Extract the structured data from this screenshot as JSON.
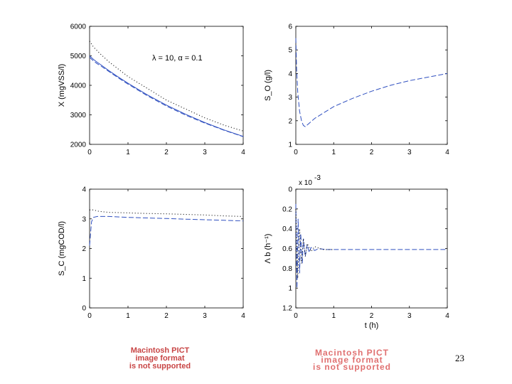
{
  "chart_data": [
    {
      "type": "line",
      "panel": "top-left",
      "ylabel": "X (mgVSS/l)",
      "xlabel": "",
      "annotation": "λ = 10, α = 0.1",
      "xlim": [
        0,
        4
      ],
      "ylim": [
        2000,
        6000
      ],
      "xticks": [
        0,
        1,
        2,
        3,
        4
      ],
      "yticks": [
        2000,
        3000,
        4000,
        5000,
        6000
      ],
      "series": [
        {
          "style": "solid",
          "color": "#3050c0",
          "x": [
            0,
            0.1,
            0.2,
            0.3,
            0.5,
            0.75,
            1,
            1.5,
            2,
            2.5,
            3,
            3.5,
            4
          ],
          "y": [
            5000,
            4880,
            4780,
            4690,
            4500,
            4280,
            4070,
            3680,
            3330,
            3020,
            2740,
            2490,
            2270
          ]
        },
        {
          "style": "dashed",
          "color": "#3050c0",
          "x": [
            0,
            0.1,
            0.2,
            0.3,
            0.5,
            0.75,
            1,
            1.5,
            2,
            2.5,
            3,
            3.5,
            4
          ],
          "y": [
            4950,
            4830,
            4730,
            4650,
            4470,
            4250,
            4040,
            3650,
            3300,
            2990,
            2720,
            2480,
            2260
          ]
        },
        {
          "style": "dotted",
          "color": "#000000",
          "x": [
            0,
            0.1,
            0.25,
            0.5,
            1,
            1.5,
            2,
            2.5,
            3,
            3.5,
            4
          ],
          "y": [
            5500,
            5300,
            5100,
            4800,
            4300,
            3900,
            3500,
            3200,
            2900,
            2650,
            2450
          ]
        }
      ]
    },
    {
      "type": "line",
      "panel": "top-right",
      "ylabel": "S_O (g/l)",
      "xlabel": "",
      "xlim": [
        0,
        4
      ],
      "ylim": [
        1,
        6
      ],
      "xticks": [
        0,
        1,
        2,
        3,
        4
      ],
      "yticks": [
        1,
        2,
        3,
        4,
        5,
        6
      ],
      "series": [
        {
          "style": "dashed",
          "color": "#3050c0",
          "x": [
            0,
            0.02,
            0.05,
            0.1,
            0.15,
            0.2,
            0.25,
            0.5,
            1,
            1.5,
            2,
            2.5,
            3,
            3.5,
            4
          ],
          "y": [
            5.5,
            4.2,
            3.2,
            2.4,
            2.0,
            1.8,
            1.75,
            2.1,
            2.6,
            2.95,
            3.25,
            3.5,
            3.7,
            3.85,
            4.0
          ]
        }
      ]
    },
    {
      "type": "line",
      "panel": "bottom-left",
      "ylabel": "S_C (mgCOD/l)",
      "xlabel": "",
      "xlim": [
        0,
        4
      ],
      "ylim": [
        0,
        4
      ],
      "xticks": [
        0,
        1,
        2,
        3,
        4
      ],
      "yticks": [
        0,
        1,
        2,
        3,
        4
      ],
      "series": [
        {
          "style": "dashed",
          "color": "#3050c0",
          "x": [
            0,
            0.05,
            0.1,
            0.2,
            0.5,
            1,
            1.5,
            2,
            2.5,
            3,
            3.5,
            4
          ],
          "y": [
            2.1,
            2.9,
            3.05,
            3.08,
            3.08,
            3.05,
            3.03,
            3.01,
            2.99,
            2.97,
            2.95,
            2.93
          ]
        },
        {
          "style": "dotted",
          "color": "#000000",
          "x": [
            0,
            0.1,
            0.25,
            0.5,
            1,
            1.5,
            2,
            2.5,
            3,
            3.5,
            4
          ],
          "y": [
            3.3,
            3.3,
            3.25,
            3.22,
            3.2,
            3.18,
            3.17,
            3.15,
            3.13,
            3.1,
            3.08
          ]
        }
      ]
    },
    {
      "type": "line",
      "panel": "bottom-right",
      "ylabel": "Λ b (h⁻¹)",
      "xlabel": "t (h)",
      "yscale_label": "x 10",
      "yscale_exp": "-3",
      "xlim": [
        0,
        4
      ],
      "ylim": [
        -1.2,
        0
      ],
      "xticks": [
        0,
        1,
        2,
        3,
        4
      ],
      "yticks": [
        0,
        -0.2,
        -0.4,
        -0.6,
        -0.8,
        -1,
        -1.2
      ],
      "ytick_labels": [
        "0",
        "0.2",
        "0.4",
        "0.6",
        "0.8",
        "1",
        "1.2"
      ],
      "series": [
        {
          "style": "dashed",
          "color": "#3050c0",
          "x": [
            0,
            0.03,
            0.06,
            0.1,
            0.13,
            0.17,
            0.2,
            0.25,
            0.3,
            0.35,
            0.4,
            0.5,
            0.6,
            0.8,
            1,
            1.5,
            2,
            2.5,
            3,
            3.5,
            4
          ],
          "y": [
            -0.15,
            -1.0,
            -0.3,
            -0.85,
            -0.45,
            -0.75,
            -0.5,
            -0.68,
            -0.56,
            -0.64,
            -0.59,
            -0.62,
            -0.6,
            -0.61,
            -0.61,
            -0.61,
            -0.61,
            -0.61,
            -0.61,
            -0.61,
            -0.61
          ]
        },
        {
          "style": "dotted",
          "color": "#000000",
          "x": [
            0,
            0.05,
            0.1,
            0.15,
            0.2,
            0.25,
            0.3,
            0.4,
            0.5,
            0.7,
            1
          ],
          "y": [
            -0.2,
            -0.9,
            -0.4,
            -0.75,
            -0.5,
            -0.68,
            -0.55,
            -0.63,
            -0.58,
            -0.61,
            -0.61
          ]
        }
      ]
    }
  ],
  "pict_left": {
    "line1": "Macintosh PICT",
    "line2": "image format",
    "line3": "is not supported"
  },
  "pict_right": {
    "line1": "Macintosh PICT",
    "line2": "image format",
    "line3": "is not supported"
  },
  "page_number": "23"
}
